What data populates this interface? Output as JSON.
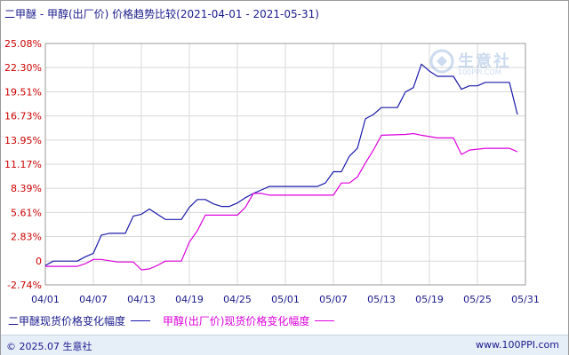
{
  "title": "二甲醚 - 甲醇(出厂价) 价格趋势比较(2021-04-01 - 2021-05-31)",
  "footer": {
    "copyright": "© 2025.07 生意社",
    "site": "www.100PPI.com"
  },
  "watermark": {
    "name": "生意社",
    "url": "100PPI.COM"
  },
  "colors": {
    "series1": "#1a1aaa",
    "series2": "#dd00dd",
    "ytick": "#cc0000",
    "xtick": "#1a1a8c",
    "grid": "#d8d8d8"
  },
  "chart_data": {
    "type": "line",
    "title": "二甲醚 - 甲醇(出厂价) 价格趋势比较(2021-04-01 - 2021-05-31)",
    "xlabel": "",
    "ylabel": "",
    "ylim": [
      -2.74,
      25.08
    ],
    "grid": true,
    "legend_position": "bottom-left",
    "y_ticks": [
      "25.08%",
      "22.30%",
      "19.51%",
      "16.73%",
      "13.95%",
      "11.17%",
      "8.39%",
      "5.61%",
      "2.83%",
      "0",
      "-2.74%"
    ],
    "y_tick_values": [
      25.08,
      22.3,
      19.51,
      16.73,
      13.95,
      11.17,
      8.39,
      5.61,
      2.83,
      0,
      -2.74
    ],
    "x_ticks": [
      "04/01",
      "04/07",
      "04/13",
      "04/19",
      "04/25",
      "05/01",
      "05/07",
      "05/13",
      "05/19",
      "05/25",
      "05/31"
    ],
    "x_tick_days": [
      1,
      7,
      13,
      19,
      25,
      31,
      37,
      43,
      49,
      55,
      61
    ],
    "series": [
      {
        "name": "二甲醚现货价格变化幅度",
        "color": "#1a1aaa",
        "points": [
          [
            1,
            -0.5
          ],
          [
            2,
            0.0
          ],
          [
            5,
            0.0
          ],
          [
            6,
            0.5
          ],
          [
            7,
            0.9
          ],
          [
            8,
            3.0
          ],
          [
            9,
            3.2
          ],
          [
            11,
            3.2
          ],
          [
            12,
            5.2
          ],
          [
            13,
            5.4
          ],
          [
            14,
            6.0
          ],
          [
            15,
            5.4
          ],
          [
            16,
            4.8
          ],
          [
            18,
            4.8
          ],
          [
            19,
            6.2
          ],
          [
            20,
            7.1
          ],
          [
            21,
            7.1
          ],
          [
            22,
            6.6
          ],
          [
            23,
            6.3
          ],
          [
            24,
            6.3
          ],
          [
            25,
            6.7
          ],
          [
            26,
            7.3
          ],
          [
            27,
            7.8
          ],
          [
            28,
            8.2
          ],
          [
            29,
            8.6
          ],
          [
            35,
            8.6
          ],
          [
            36,
            9.0
          ],
          [
            37,
            10.3
          ],
          [
            38,
            10.3
          ],
          [
            39,
            12.1
          ],
          [
            40,
            13.0
          ],
          [
            41,
            16.4
          ],
          [
            42,
            16.9
          ],
          [
            43,
            17.7
          ],
          [
            45,
            17.7
          ],
          [
            46,
            19.5
          ],
          [
            47,
            20.0
          ],
          [
            48,
            22.7
          ],
          [
            49,
            21.9
          ],
          [
            50,
            21.3
          ],
          [
            52,
            21.3
          ],
          [
            53,
            19.8
          ],
          [
            54,
            20.2
          ],
          [
            55,
            20.2
          ],
          [
            56,
            20.6
          ],
          [
            59,
            20.6
          ],
          [
            60,
            16.9
          ]
        ]
      },
      {
        "name": "甲醇(出厂价)现货价格变化幅度",
        "color": "#dd00dd",
        "points": [
          [
            1,
            -0.6
          ],
          [
            5,
            -0.6
          ],
          [
            6,
            -0.3
          ],
          [
            7,
            0.2
          ],
          [
            8,
            0.2
          ],
          [
            10,
            -0.1
          ],
          [
            12,
            -0.1
          ],
          [
            13,
            -1.0
          ],
          [
            14,
            -0.9
          ],
          [
            15,
            -0.5
          ],
          [
            16,
            0.0
          ],
          [
            18,
            0.0
          ],
          [
            19,
            2.2
          ],
          [
            20,
            3.5
          ],
          [
            21,
            5.3
          ],
          [
            25,
            5.3
          ],
          [
            26,
            6.2
          ],
          [
            27,
            7.8
          ],
          [
            28,
            7.8
          ],
          [
            29,
            7.6
          ],
          [
            37,
            7.6
          ],
          [
            38,
            9.0
          ],
          [
            39,
            9.0
          ],
          [
            40,
            9.7
          ],
          [
            41,
            11.3
          ],
          [
            42,
            12.8
          ],
          [
            43,
            14.5
          ],
          [
            46,
            14.6
          ],
          [
            47,
            14.7
          ],
          [
            48,
            14.5
          ],
          [
            50,
            14.2
          ],
          [
            52,
            14.2
          ],
          [
            53,
            12.3
          ],
          [
            54,
            12.8
          ],
          [
            56,
            13.0
          ],
          [
            59,
            13.0
          ],
          [
            60,
            12.6
          ]
        ]
      }
    ]
  }
}
